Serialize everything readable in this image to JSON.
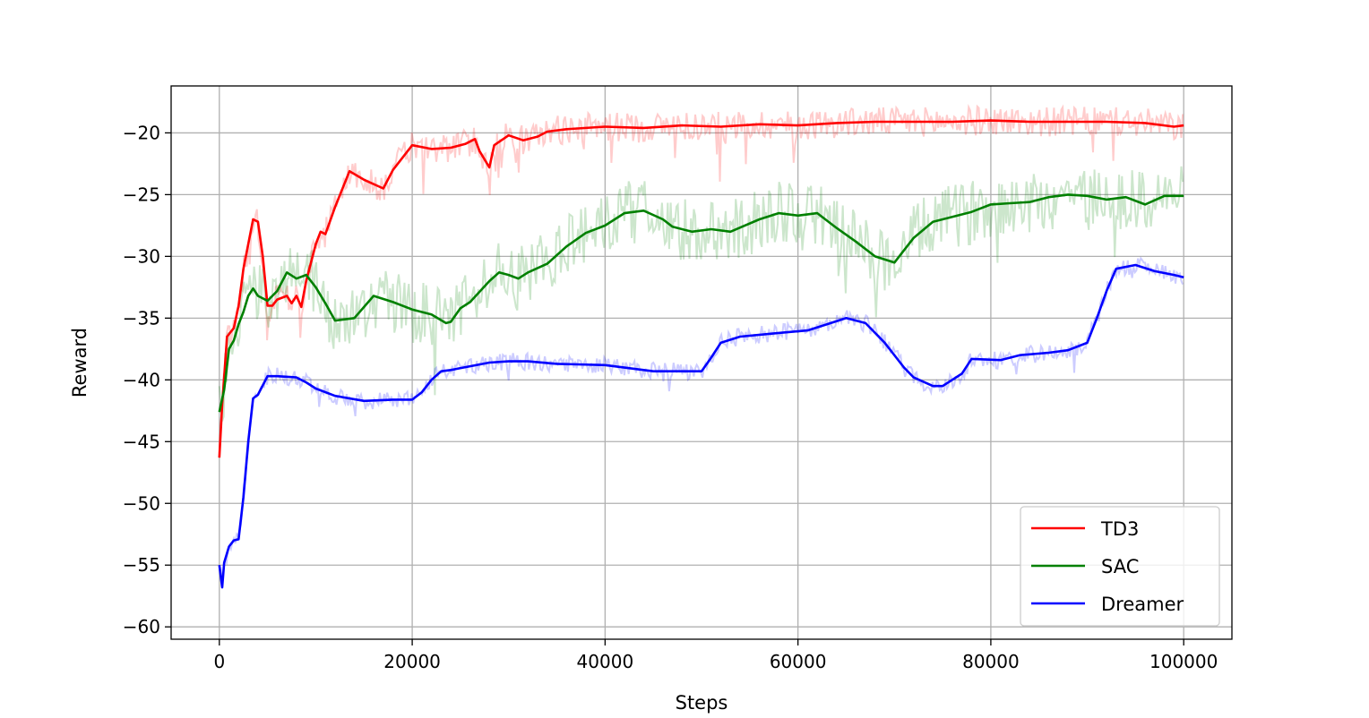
{
  "chart_data": {
    "type": "line",
    "title": "",
    "xlabel": "Steps",
    "ylabel": "Reward",
    "xlim": [
      -5000,
      105000
    ],
    "ylim": [
      -61,
      -16.2
    ],
    "xticks": [
      0,
      20000,
      40000,
      60000,
      80000,
      100000
    ],
    "xtick_labels": [
      "0",
      "20000",
      "40000",
      "60000",
      "80000",
      "100000"
    ],
    "yticks": [
      -20,
      -25,
      -30,
      -35,
      -40,
      -45,
      -50,
      -55,
      -60
    ],
    "ytick_labels": [
      "−20",
      "−25",
      "−30",
      "−35",
      "−40",
      "−45",
      "−50",
      "−55",
      "−60"
    ],
    "grid": true,
    "legend_position": "lower-right",
    "series": [
      {
        "name": "TD3",
        "color": "#ff0000",
        "x": [
          0,
          300,
          800,
          1500,
          2000,
          2500,
          3000,
          3500,
          4000,
          4500,
          5000,
          5500,
          6000,
          7000,
          7500,
          8000,
          8500,
          9000,
          10000,
          10500,
          11000,
          12000,
          13500,
          15000,
          17000,
          18000,
          20000,
          22000,
          24000,
          25500,
          26500,
          27000,
          28000,
          28500,
          30000,
          31500,
          33000,
          34000,
          36000,
          40000,
          44000,
          48000,
          52000,
          56000,
          60000,
          64000,
          68000,
          72000,
          76000,
          80000,
          84000,
          88000,
          92000,
          96000,
          99000,
          100000
        ],
        "y": [
          -46.3,
          -42,
          -36.5,
          -35.8,
          -34,
          -31,
          -29,
          -27,
          -27.2,
          -30,
          -34,
          -34,
          -33.5,
          -33.2,
          -33.8,
          -33.2,
          -34.1,
          -32,
          -29,
          -28,
          -28.2,
          -26,
          -23.1,
          -23.8,
          -24.5,
          -23,
          -21,
          -21.3,
          -21.2,
          -20.9,
          -20.5,
          -21.5,
          -22.8,
          -21,
          -20.2,
          -20.6,
          -20.3,
          -19.9,
          -19.7,
          -19.5,
          -19.6,
          -19.4,
          -19.5,
          -19.3,
          -19.4,
          -19.2,
          -19.1,
          -19.1,
          -19.1,
          -19.0,
          -19.1,
          -19.1,
          -19.1,
          -19.2,
          -19.5,
          -19.4
        ]
      },
      {
        "name": "SAC",
        "color": "#008000",
        "x": [
          0,
          500,
          1000,
          1500,
          2000,
          2500,
          3000,
          3500,
          4000,
          5000,
          6000,
          7000,
          8000,
          9000,
          10000,
          11000,
          12000,
          14000,
          16000,
          18000,
          20000,
          22000,
          23500,
          24000,
          25000,
          26000,
          28000,
          29000,
          30000,
          31000,
          32000,
          34000,
          36000,
          38000,
          40000,
          42000,
          44000,
          46000,
          47000,
          49000,
          51000,
          53000,
          56000,
          58000,
          60000,
          62000,
          64000,
          66000,
          68000,
          70000,
          72000,
          74000,
          76000,
          78000,
          80000,
          82000,
          84000,
          86000,
          88000,
          90000,
          92000,
          94000,
          96000,
          98000,
          100000
        ],
        "y": [
          -42.6,
          -40.8,
          -37.5,
          -36.8,
          -35.5,
          -34.5,
          -33.2,
          -32.6,
          -33.2,
          -33.6,
          -32.8,
          -31.3,
          -31.8,
          -31.5,
          -32.5,
          -33.8,
          -35.2,
          -35.0,
          -33.2,
          -33.7,
          -34.3,
          -34.7,
          -35.4,
          -35.3,
          -34.2,
          -33.7,
          -32.0,
          -31.3,
          -31.5,
          -31.8,
          -31.3,
          -30.6,
          -29.2,
          -28.1,
          -27.5,
          -26.5,
          -26.3,
          -27.0,
          -27.6,
          -28.0,
          -27.8,
          -28.0,
          -27.0,
          -26.5,
          -26.7,
          -26.5,
          -27.7,
          -28.8,
          -30.0,
          -30.5,
          -28.5,
          -27.2,
          -26.8,
          -26.4,
          -25.8,
          -25.7,
          -25.6,
          -25.2,
          -25.0,
          -25.1,
          -25.4,
          -25.2,
          -25.8,
          -25.1,
          -25.1
        ]
      },
      {
        "name": "Dreamer",
        "color": "#0000ff",
        "x": [
          0,
          300,
          500,
          1000,
          1500,
          2000,
          2500,
          3000,
          3500,
          4000,
          5000,
          6000,
          8000,
          9000,
          10000,
          12000,
          15000,
          18000,
          20000,
          21000,
          22000,
          23000,
          24000,
          26000,
          28000,
          30000,
          32000,
          35000,
          40000,
          45000,
          50000,
          51000,
          52000,
          54000,
          58000,
          61000,
          63000,
          65000,
          67000,
          69000,
          71000,
          72000,
          74000,
          75000,
          77000,
          78000,
          81000,
          83000,
          86000,
          88000,
          90000,
          91000,
          92000,
          93000,
          95000,
          97000,
          99000,
          100000
        ],
        "y": [
          -55,
          -56.8,
          -54.8,
          -53.5,
          -53.0,
          -52.9,
          -49.5,
          -45.0,
          -41.5,
          -41.2,
          -39.7,
          -39.7,
          -39.8,
          -40.2,
          -40.7,
          -41.3,
          -41.7,
          -41.6,
          -41.6,
          -41.0,
          -40.0,
          -39.3,
          -39.2,
          -38.9,
          -38.6,
          -38.5,
          -38.5,
          -38.7,
          -38.8,
          -39.3,
          -39.3,
          -38.2,
          -37.0,
          -36.5,
          -36.2,
          -36.0,
          -35.5,
          -35.0,
          -35.4,
          -37.0,
          -39.0,
          -39.8,
          -40.5,
          -40.5,
          -39.5,
          -38.3,
          -38.4,
          -38.0,
          -37.8,
          -37.6,
          -37.0,
          -35.0,
          -32.8,
          -31.0,
          -30.7,
          -31.2,
          -31.5,
          -31.7
        ]
      }
    ]
  }
}
